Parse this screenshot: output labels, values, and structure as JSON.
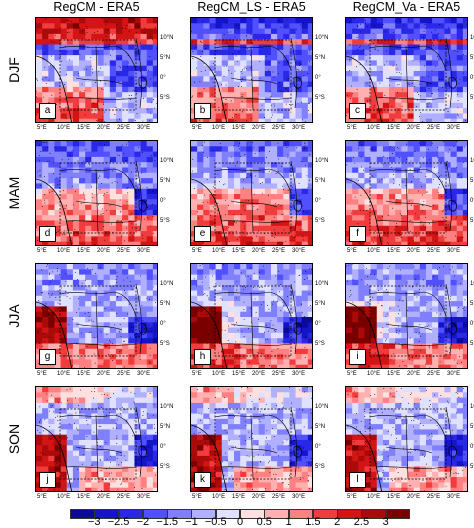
{
  "columns": [
    "RegCM - ERA5",
    "RegCM_LS - ERA5",
    "RegCM_Va - ERA5"
  ],
  "rows": [
    "DJF",
    "MAM",
    "JJA",
    "SON"
  ],
  "panel_letters": [
    "a",
    "b",
    "c",
    "d",
    "e",
    "f",
    "g",
    "h",
    "i",
    "j",
    "k",
    "l"
  ],
  "lat_labels": [
    "10°N",
    "5°N",
    "0°",
    "5°S"
  ],
  "lon_labels": [
    "5°E",
    "10°E",
    "15°E",
    "20°E",
    "25°E",
    "30°E"
  ],
  "colorbar": {
    "ticks": [
      "−3",
      "−2.5",
      "−2",
      "−1.5",
      "−1",
      "−0.5",
      "0",
      "0.5",
      "1",
      "1.5",
      "2",
      "2.5",
      "3"
    ],
    "colors": [
      "#0a0a96",
      "#1414c8",
      "#2828e6",
      "#5050ff",
      "#8080ff",
      "#b0b0ff",
      "#e0e0ff",
      "#ffe0e0",
      "#ffb0b0",
      "#ff8080",
      "#f03c3c",
      "#d21414",
      "#aa0a0a",
      "#7a0000"
    ]
  }
}
